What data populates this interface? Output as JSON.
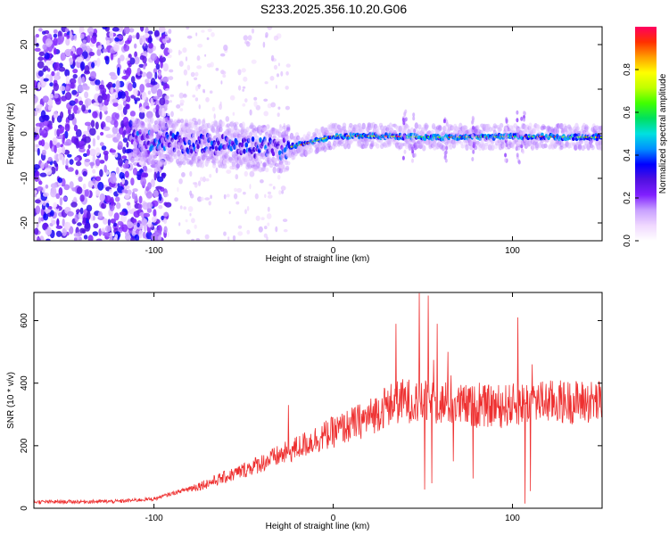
{
  "title": "S233.2025.356.10.20.G06",
  "chart_data": [
    {
      "type": "heatmap",
      "title": "",
      "xlabel": "Height of straight line (km)",
      "ylabel": "Frequency (Hz)",
      "xlim": [
        -167,
        150
      ],
      "ylim": [
        -24,
        24
      ],
      "xticks": [
        -100,
        0,
        100
      ],
      "yticks": [
        -20,
        -10,
        0,
        10,
        20
      ],
      "colorbar": {
        "label": "Normalized spectral amplitude",
        "range": [
          0,
          1
        ],
        "ticks": [
          0,
          0.2,
          0.4,
          0.6,
          0.8
        ],
        "tick_labels": [
          "0.0",
          "0.2",
          "0.4",
          "0.6",
          "0.8"
        ],
        "colormap": [
          "#ffffff",
          "#f0d8ff",
          "#c8a0ff",
          "#8020ff",
          "#5010e0",
          "#0000ff",
          "#0090ff",
          "#00e0e0",
          "#00e060",
          "#40ff00",
          "#c0ff00",
          "#ffff00",
          "#ffa000",
          "#ff3000",
          "#ff0060"
        ]
      },
      "ridge": {
        "description_points": [
          {
            "x": -110,
            "f": -1.5
          },
          {
            "x": -60,
            "f": -2.5
          },
          {
            "x": -30,
            "f": -3.5
          },
          {
            "x": -15,
            "f": -2.2
          },
          {
            "x": 0,
            "f": -0.5
          },
          {
            "x": 20,
            "f": -0.5
          },
          {
            "x": 60,
            "f": -0.8
          },
          {
            "x": 100,
            "f": -0.6
          },
          {
            "x": 150,
            "f": -0.8
          }
        ]
      }
    },
    {
      "type": "line",
      "title": "",
      "xlabel": "Height of straight line (km)",
      "ylabel": "SNR (10 * v/v)",
      "xlim": [
        -167,
        150
      ],
      "ylim": [
        0,
        690
      ],
      "xticks": [
        -100,
        0,
        100
      ],
      "yticks": [
        0,
        200,
        400,
        600
      ],
      "series": [
        {
          "name": "SNR",
          "color": "#ee3030",
          "envelope": [
            {
              "x": -167,
              "y": 20
            },
            {
              "x": -120,
              "y": 22
            },
            {
              "x": -100,
              "y": 30
            },
            {
              "x": -85,
              "y": 55
            },
            {
              "x": -70,
              "y": 80
            },
            {
              "x": -55,
              "y": 110
            },
            {
              "x": -40,
              "y": 145
            },
            {
              "x": -25,
              "y": 180
            },
            {
              "x": -10,
              "y": 220
            },
            {
              "x": 5,
              "y": 255
            },
            {
              "x": 20,
              "y": 290
            },
            {
              "x": 30,
              "y": 330
            },
            {
              "x": 40,
              "y": 345
            },
            {
              "x": 60,
              "y": 335
            },
            {
              "x": 80,
              "y": 325
            },
            {
              "x": 100,
              "y": 330
            },
            {
              "x": 110,
              "y": 340
            },
            {
              "x": 150,
              "y": 340
            }
          ],
          "dropouts": [
            {
              "x": 46,
              "y": 20
            },
            {
              "x": 51,
              "y": 60
            },
            {
              "x": 55,
              "y": 80
            },
            {
              "x": 67,
              "y": 150
            },
            {
              "x": 78,
              "y": 95
            },
            {
              "x": 107,
              "y": 15
            },
            {
              "x": 110,
              "y": 55
            }
          ],
          "spikes": [
            {
              "x": -25,
              "y": 330
            },
            {
              "x": 35,
              "y": 590
            },
            {
              "x": 48,
              "y": 690
            },
            {
              "x": 53,
              "y": 680
            },
            {
              "x": 58,
              "y": 590
            },
            {
              "x": 64,
              "y": 500
            },
            {
              "x": 103,
              "y": 610
            },
            {
              "x": 111,
              "y": 460
            }
          ]
        }
      ]
    }
  ]
}
